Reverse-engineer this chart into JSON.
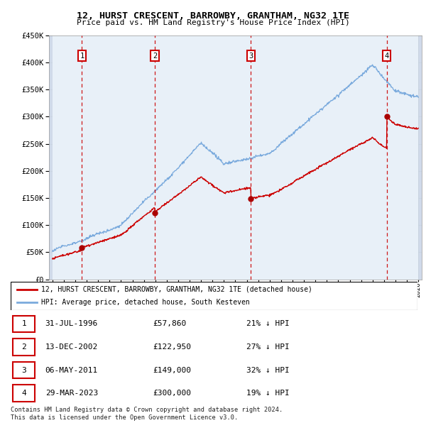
{
  "title": "12, HURST CRESCENT, BARROWBY, GRANTHAM, NG32 1TE",
  "subtitle": "Price paid vs. HM Land Registry's House Price Index (HPI)",
  "ytick_values": [
    0,
    50000,
    100000,
    150000,
    200000,
    250000,
    300000,
    350000,
    400000,
    450000
  ],
  "xmin": 1993.7,
  "xmax": 2026.3,
  "ymin": 0,
  "ymax": 450000,
  "sale_dates": [
    1996.58,
    2002.95,
    2011.35,
    2023.24
  ],
  "sale_prices": [
    57860,
    122950,
    149000,
    300000
  ],
  "sale_labels": [
    "1",
    "2",
    "3",
    "4"
  ],
  "hpi_line_color": "#7aaadd",
  "price_line_color": "#cc0000",
  "sale_point_color": "#aa0000",
  "vline_color": "#cc0000",
  "chart_bg": "#e8f0f8",
  "hatch_bg": "#d0daea",
  "grid_color": "#c8d4e0",
  "label_box_color": "#cc0000",
  "legend_line1": "12, HURST CRESCENT, BARROWBY, GRANTHAM, NG32 1TE (detached house)",
  "legend_line2": "HPI: Average price, detached house, South Kesteven",
  "table_rows": [
    [
      "1",
      "31-JUL-1996",
      "£57,860",
      "21% ↓ HPI"
    ],
    [
      "2",
      "13-DEC-2002",
      "£122,950",
      "27% ↓ HPI"
    ],
    [
      "3",
      "06-MAY-2011",
      "£149,000",
      "32% ↓ HPI"
    ],
    [
      "4",
      "29-MAR-2023",
      "£300,000",
      "19% ↓ HPI"
    ]
  ],
  "footer": "Contains HM Land Registry data © Crown copyright and database right 2024.\nThis data is licensed under the Open Government Licence v3.0."
}
